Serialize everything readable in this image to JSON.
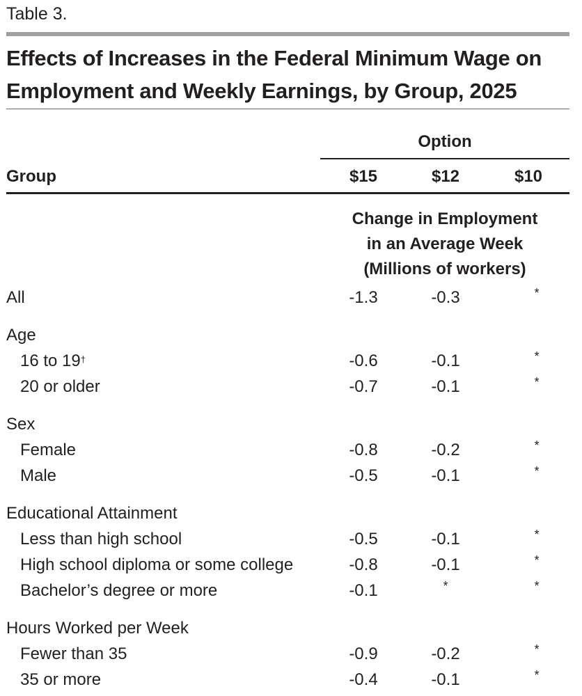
{
  "table_label": "Table 3.",
  "title_line1": "Effects of Increases in the Federal Minimum Wage on",
  "title_line2": "Employment and Weekly Earnings, by Group, 2025",
  "option_header": "Option",
  "group_header": "Group",
  "columns": [
    "$15",
    "$12",
    "$10"
  ],
  "subheader": [
    "Change in Employment",
    "in an Average Week",
    "(Millions of workers)"
  ],
  "rows": {
    "all": {
      "label": "All",
      "values": [
        "-1.3",
        "-0.3",
        "*"
      ]
    },
    "age": {
      "label": "Age"
    },
    "age_16_19": {
      "label": "16 to 19",
      "footnote": "†",
      "values": [
        "-0.6",
        "-0.1",
        "*"
      ]
    },
    "age_20": {
      "label": "20 or older",
      "values": [
        "-0.7",
        "-0.1",
        "*"
      ]
    },
    "sex": {
      "label": "Sex"
    },
    "female": {
      "label": "Female",
      "values": [
        "-0.8",
        "-0.2",
        "*"
      ]
    },
    "male": {
      "label": "Male",
      "values": [
        "-0.5",
        "-0.1",
        "*"
      ]
    },
    "edu": {
      "label": "Educational Attainment"
    },
    "less_hs": {
      "label": "Less than high school",
      "values": [
        "-0.5",
        "-0.1",
        "*"
      ]
    },
    "hs": {
      "label": "High school diploma or some college",
      "values": [
        "-0.8",
        "-0.1",
        "*"
      ]
    },
    "ba": {
      "label": "Bachelor’s degree or more",
      "values": [
        "-0.1",
        "*",
        "*"
      ]
    },
    "hours": {
      "label": "Hours Worked per Week"
    },
    "fewer35": {
      "label": "Fewer than 35",
      "values": [
        "-0.9",
        "-0.2",
        "*"
      ]
    },
    "more35": {
      "label": "35 or more",
      "values": [
        "-0.4",
        "-0.1",
        "*"
      ]
    }
  }
}
